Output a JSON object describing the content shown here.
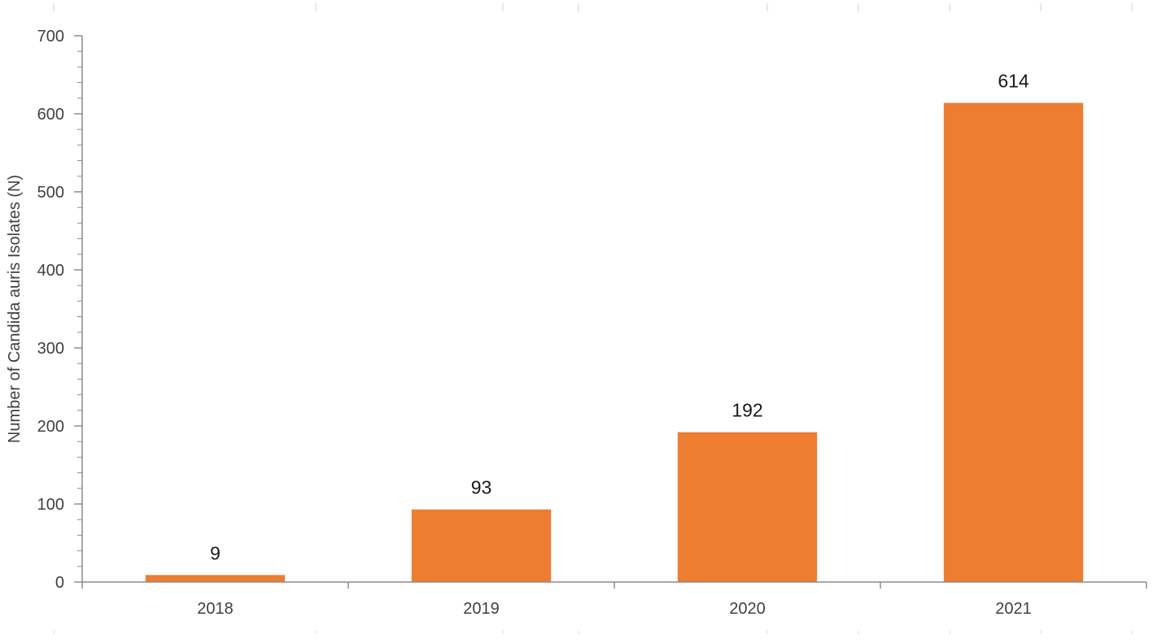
{
  "chart_data": {
    "type": "bar",
    "categories": [
      "2018",
      "2019",
      "2020",
      "2021"
    ],
    "values": [
      9,
      93,
      192,
      614
    ],
    "data_labels": [
      "9",
      "93",
      "192",
      "614"
    ],
    "title": "",
    "xlabel": "",
    "ylabel": "Number of Candida auris Isolates (N)",
    "ylim": [
      0,
      700
    ],
    "yticks": [
      0,
      100,
      200,
      300,
      400,
      500,
      600,
      700
    ],
    "ytick_labels": [
      "0",
      "100",
      "200",
      "300",
      "400",
      "500",
      "600",
      "700"
    ],
    "minor_tick_step": 20,
    "grid": false,
    "legend": "none",
    "bar_color": "#ED7D31",
    "axis_color": "#8C8C8C"
  }
}
